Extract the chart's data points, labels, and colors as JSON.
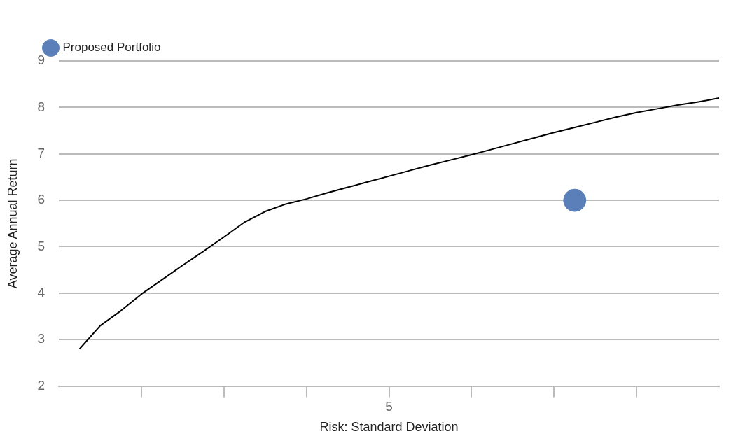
{
  "chart_data": {
    "type": "line",
    "xlabel": "Risk: Standard Deviation",
    "ylabel": "Average Annual Return",
    "categories": [
      null,
      null,
      null,
      null,
      null,
      null,
      null,
      null,
      null,
      null,
      null,
      null,
      null,
      null,
      null,
      null,
      "5",
      null,
      null,
      null,
      null,
      null,
      null,
      null,
      null,
      null,
      null,
      null,
      null,
      null,
      null,
      null,
      null
    ],
    "ylim": [
      2,
      9
    ],
    "yticks": [
      2,
      3,
      4,
      5,
      6,
      7,
      8,
      9
    ],
    "grid": "y",
    "legend": "top left",
    "series": [
      {
        "type": "line",
        "color": "#000000",
        "marker": "none",
        "values": [
          null,
          2.8,
          3.3,
          3.62,
          3.98,
          4.29,
          4.6,
          4.9,
          5.21,
          5.53,
          5.76,
          5.92,
          6.03,
          6.16,
          6.28,
          6.4,
          6.52,
          6.64,
          6.76,
          6.87,
          6.98,
          7.1,
          7.22,
          7.34,
          7.46,
          7.57,
          7.68,
          7.79,
          7.89,
          7.97,
          8.05,
          8.12,
          8.2
        ]
      },
      {
        "type": "scatter",
        "name": "Proposed Portfolio",
        "color": "#5b7fb9",
        "marker": "circle",
        "values": [
          null,
          null,
          null,
          null,
          null,
          null,
          null,
          null,
          null,
          null,
          null,
          null,
          null,
          null,
          null,
          null,
          null,
          null,
          null,
          null,
          null,
          null,
          null,
          null,
          null,
          6.0,
          null,
          null,
          null,
          null,
          null,
          null,
          null
        ]
      }
    ]
  }
}
